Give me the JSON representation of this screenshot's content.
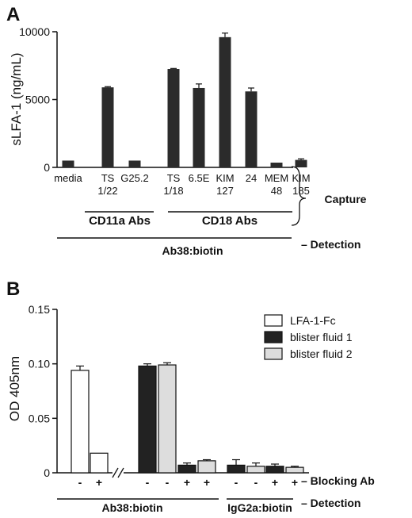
{
  "panel_a": {
    "letter": "A",
    "chart_data": {
      "type": "bar",
      "ylabel": "sLFA-1 (ng/mL)",
      "ylim": [
        0,
        10000
      ],
      "yticks": [
        "0",
        "5000",
        "10000"
      ],
      "ytick_values": [
        0,
        5000,
        10000
      ],
      "categories": [
        [
          "media"
        ],
        [
          "TS",
          "1/22"
        ],
        [
          "G25.2"
        ],
        [
          "TS",
          "1/18"
        ],
        [
          "6.5E"
        ],
        [
          "KIM",
          "127"
        ],
        [
          "24"
        ],
        [
          "MEM",
          "48"
        ],
        [
          "KIM",
          "185"
        ]
      ],
      "values": [
        500,
        5900,
        500,
        7250,
        5850,
        9600,
        5600,
        350,
        550
      ],
      "errors": [
        0,
        50,
        0,
        40,
        300,
        300,
        250,
        0,
        80
      ],
      "bar_color": "#2b2b2b"
    },
    "group_labels": [
      {
        "text": "CD11a Abs"
      },
      {
        "text": "CD18 Abs"
      }
    ],
    "capture_label": "Capture",
    "detection_reagent": "Ab38:biotin",
    "detection_label": "– Detection"
  },
  "panel_b": {
    "letter": "B",
    "chart_data": {
      "type": "bar",
      "ylabel": "OD 405nm",
      "ylim": [
        0,
        0.15
      ],
      "yticks": [
        "0",
        "0.05",
        "0.10",
        "0.15"
      ],
      "ytick_values": [
        0,
        0.05,
        0.1,
        0.15
      ],
      "series": [
        {
          "name": "LFA-1-Fc",
          "color": "#ffffff"
        },
        {
          "name": "blister fluid 1",
          "color": "#222222"
        },
        {
          "name": "blister fluid 2",
          "color": "#dddddd"
        }
      ],
      "bars": [
        {
          "series": 0,
          "blocking": "-",
          "value": 0.094,
          "error": 0.004
        },
        {
          "series": 0,
          "blocking": "+",
          "value": 0.018,
          "error": 0
        },
        {
          "series": 1,
          "blocking": "-",
          "value": 0.098,
          "error": 0.002
        },
        {
          "series": 2,
          "blocking": "-",
          "value": 0.099,
          "error": 0.002
        },
        {
          "series": 1,
          "blocking": "+",
          "value": 0.007,
          "error": 0.002
        },
        {
          "series": 2,
          "blocking": "+",
          "value": 0.011,
          "error": 0.001
        },
        {
          "series": 1,
          "blocking": "-",
          "value": 0.007,
          "error": 0.005
        },
        {
          "series": 2,
          "blocking": "-",
          "value": 0.006,
          "error": 0.003
        },
        {
          "series": 1,
          "blocking": "+",
          "value": 0.006,
          "error": 0.002
        },
        {
          "series": 2,
          "blocking": "+",
          "value": 0.005,
          "error": 0.001
        }
      ],
      "axis_break": "//"
    },
    "blocking_label": "– Blocking Ab",
    "detection_groups": [
      "Ab38:biotin",
      "IgG2a:biotin"
    ],
    "detection_label": "– Detection"
  }
}
